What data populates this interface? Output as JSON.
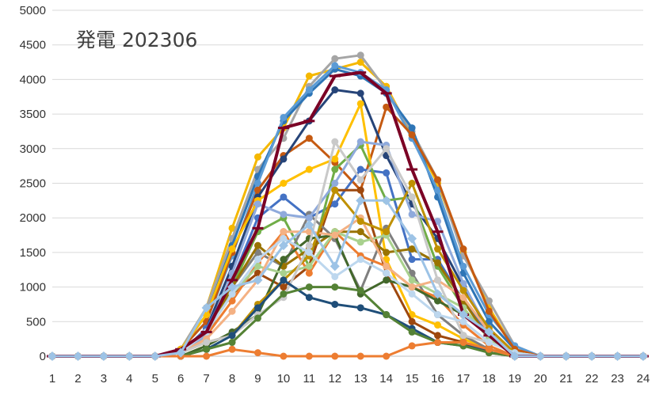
{
  "chart_data": {
    "type": "line",
    "title": "発電 202306",
    "xlabel": "",
    "ylabel": "",
    "x": [
      1,
      2,
      3,
      4,
      5,
      6,
      7,
      8,
      9,
      10,
      11,
      12,
      13,
      14,
      15,
      16,
      17,
      18,
      19,
      20,
      21,
      22,
      23,
      24
    ],
    "ylim": [
      0,
      5000
    ],
    "y_ticks": [
      "0",
      "500",
      "1000",
      "1500",
      "2000",
      "2500",
      "3000",
      "3500",
      "4000",
      "4500",
      "5000"
    ],
    "x_ticks": [
      "1",
      "2",
      "3",
      "4",
      "5",
      "6",
      "7",
      "8",
      "9",
      "10",
      "11",
      "12",
      "13",
      "14",
      "15",
      "16",
      "17",
      "18",
      "19",
      "20",
      "21",
      "22",
      "23",
      "24"
    ],
    "grid": "horizontal",
    "legend": "none",
    "series": [
      {
        "color": "#f5b800",
        "marker": "circle",
        "values": [
          0,
          0,
          0,
          0,
          0,
          100,
          700,
          1850,
          2880,
          3300,
          4050,
          4150,
          4250,
          3900,
          3200,
          2500,
          1500,
          700,
          100,
          0,
          0,
          0,
          0,
          0
        ]
      },
      {
        "color": "#a5a5a5",
        "marker": "circle",
        "values": [
          0,
          0,
          0,
          0,
          0,
          100,
          700,
          1700,
          2700,
          3150,
          3900,
          4300,
          4350,
          3850,
          3250,
          2550,
          1450,
          800,
          150,
          0,
          0,
          0,
          0,
          0
        ]
      },
      {
        "color": "#2e75b6",
        "marker": "circle",
        "values": [
          0,
          0,
          0,
          0,
          0,
          100,
          600,
          1600,
          2600,
          3400,
          3800,
          4150,
          4050,
          3800,
          3300,
          2300,
          1200,
          500,
          100,
          0,
          0,
          0,
          0,
          0
        ]
      },
      {
        "color": "#5b9bd5",
        "marker": "circle",
        "values": [
          0,
          0,
          0,
          0,
          0,
          100,
          500,
          1450,
          2500,
          3450,
          3850,
          4200,
          4100,
          3850,
          3150,
          2400,
          1300,
          600,
          150,
          0,
          0,
          0,
          0,
          0
        ]
      },
      {
        "color": "#c55a11",
        "marker": "circle",
        "values": [
          0,
          0,
          0,
          0,
          0,
          100,
          500,
          1500,
          2400,
          2900,
          3150,
          2800,
          2400,
          3600,
          3200,
          2550,
          1550,
          650,
          100,
          0,
          0,
          0,
          0,
          0
        ]
      },
      {
        "color": "#264478",
        "marker": "circle",
        "values": [
          0,
          0,
          0,
          0,
          0,
          50,
          400,
          1300,
          2300,
          2850,
          3400,
          3850,
          3800,
          2900,
          2200,
          1700,
          1000,
          350,
          50,
          0,
          0,
          0,
          0,
          0
        ]
      },
      {
        "color": "#ffc000",
        "marker": "circle",
        "values": [
          0,
          0,
          0,
          0,
          0,
          100,
          600,
          1550,
          2250,
          2500,
          2700,
          2850,
          3650,
          1400,
          600,
          450,
          250,
          100,
          0,
          0,
          0,
          0,
          0,
          0
        ]
      },
      {
        "color": "#4472c4",
        "marker": "circle",
        "values": [
          0,
          0,
          0,
          0,
          0,
          50,
          400,
          1100,
          2000,
          2300,
          2000,
          2200,
          2700,
          2650,
          1400,
          1400,
          800,
          300,
          50,
          0,
          0,
          0,
          0,
          0
        ]
      },
      {
        "color": "#70ad47",
        "marker": "circle",
        "values": [
          0,
          0,
          0,
          0,
          0,
          50,
          300,
          1000,
          1800,
          2000,
          1300,
          2700,
          3050,
          2250,
          2300,
          1300,
          700,
          250,
          50,
          0,
          0,
          0,
          0,
          0
        ]
      },
      {
        "color": "#9e480e",
        "marker": "circle",
        "values": [
          0,
          0,
          0,
          0,
          0,
          50,
          350,
          900,
          1200,
          1000,
          1300,
          2400,
          2400,
          1200,
          500,
          300,
          200,
          50,
          0,
          0,
          0,
          0,
          0,
          0
        ]
      },
      {
        "color": "#7f7f7f",
        "marker": "circle",
        "values": [
          0,
          0,
          0,
          0,
          0,
          50,
          300,
          1000,
          1500,
          1300,
          2050,
          1700,
          950,
          1850,
          1200,
          600,
          300,
          100,
          0,
          0,
          0,
          0,
          0,
          0
        ]
      },
      {
        "color": "#997300",
        "marker": "circle",
        "values": [
          0,
          0,
          0,
          0,
          0,
          50,
          350,
          1000,
          1600,
          1300,
          1550,
          1800,
          1800,
          1500,
          1550,
          1350,
          800,
          250,
          50,
          0,
          0,
          0,
          0,
          0
        ]
      },
      {
        "color": "#ed7d31",
        "marker": "circle",
        "values": [
          0,
          0,
          0,
          0,
          0,
          50,
          300,
          800,
          1350,
          1800,
          1200,
          1800,
          1450,
          1300,
          1000,
          850,
          450,
          150,
          0,
          0,
          0,
          0,
          0,
          0
        ]
      },
      {
        "color": "#43682b",
        "marker": "circle",
        "values": [
          0,
          0,
          0,
          0,
          0,
          0,
          150,
          350,
          600,
          1400,
          1700,
          1750,
          900,
          1100,
          1000,
          800,
          600,
          300,
          50,
          0,
          0,
          0,
          0,
          0
        ]
      },
      {
        "color": "#8faadc",
        "marker": "circle",
        "values": [
          0,
          0,
          0,
          0,
          0,
          50,
          300,
          1200,
          2200,
          2050,
          2000,
          2500,
          3100,
          3050,
          2050,
          1950,
          1050,
          350,
          50,
          0,
          0,
          0,
          0,
          0
        ]
      },
      {
        "color": "#a9d18e",
        "marker": "circle",
        "values": [
          0,
          0,
          0,
          0,
          0,
          50,
          350,
          900,
          1300,
          1200,
          1300,
          1800,
          1650,
          1750,
          1100,
          900,
          700,
          250,
          50,
          0,
          0,
          0,
          0,
          0
        ]
      },
      {
        "color": "#f4b183",
        "marker": "circle",
        "values": [
          0,
          0,
          0,
          0,
          0,
          50,
          250,
          650,
          1100,
          1800,
          1800,
          1750,
          2000,
          1300,
          1000,
          1100,
          850,
          350,
          50,
          0,
          0,
          0,
          0,
          0
        ]
      },
      {
        "color": "#bf9000",
        "marker": "circle",
        "values": [
          0,
          0,
          0,
          0,
          0,
          50,
          200,
          300,
          750,
          1100,
          1450,
          2400,
          1950,
          1800,
          2500,
          1550,
          950,
          400,
          50,
          0,
          0,
          0,
          0,
          0
        ]
      },
      {
        "color": "#c9c9c9",
        "marker": "circle",
        "values": [
          0,
          0,
          0,
          0,
          0,
          50,
          200,
          300,
          600,
          850,
          1600,
          3100,
          2550,
          3000,
          2300,
          1100,
          300,
          200,
          50,
          0,
          0,
          0,
          0,
          0
        ]
      },
      {
        "color": "#1f4e79",
        "marker": "circle",
        "values": [
          0,
          0,
          0,
          0,
          0,
          0,
          100,
          300,
          700,
          1100,
          850,
          750,
          700,
          600,
          400,
          200,
          150,
          100,
          0,
          0,
          0,
          0,
          0,
          0
        ]
      },
      {
        "color": "#548235",
        "marker": "circle",
        "values": [
          0,
          0,
          0,
          0,
          0,
          0,
          100,
          200,
          550,
          900,
          1000,
          1000,
          950,
          600,
          350,
          200,
          150,
          50,
          0,
          0,
          0,
          0,
          0,
          0
        ]
      },
      {
        "color": "#bdd7ee",
        "marker": "circle",
        "values": [
          0,
          0,
          0,
          0,
          0,
          50,
          350,
          900,
          1400,
          1700,
          1500,
          1150,
          1400,
          1200,
          900,
          600,
          500,
          200,
          50,
          0,
          0,
          0,
          0,
          0
        ]
      },
      {
        "color": "#ed7d31",
        "marker": "circle",
        "values": [
          0,
          0,
          0,
          0,
          0,
          0,
          0,
          100,
          50,
          0,
          0,
          0,
          0,
          0,
          150,
          200,
          200,
          100,
          0,
          0,
          0,
          0,
          0,
          0
        ]
      },
      {
        "color": "#7b0025",
        "marker": "dash",
        "values": [
          0,
          0,
          0,
          0,
          0,
          100,
          350,
          1100,
          1850,
          3300,
          3400,
          4050,
          4100,
          3800,
          2700,
          1800,
          600,
          300,
          0,
          0,
          0,
          0,
          0,
          0
        ]
      },
      {
        "color": "#9dc3e6",
        "marker": "diamond",
        "values": [
          0,
          0,
          0,
          0,
          0,
          50,
          700,
          1000,
          1100,
          1600,
          1900,
          1300,
          2250,
          2250,
          1700,
          900,
          600,
          350,
          0,
          0,
          0,
          0,
          0,
          0
        ]
      }
    ]
  }
}
